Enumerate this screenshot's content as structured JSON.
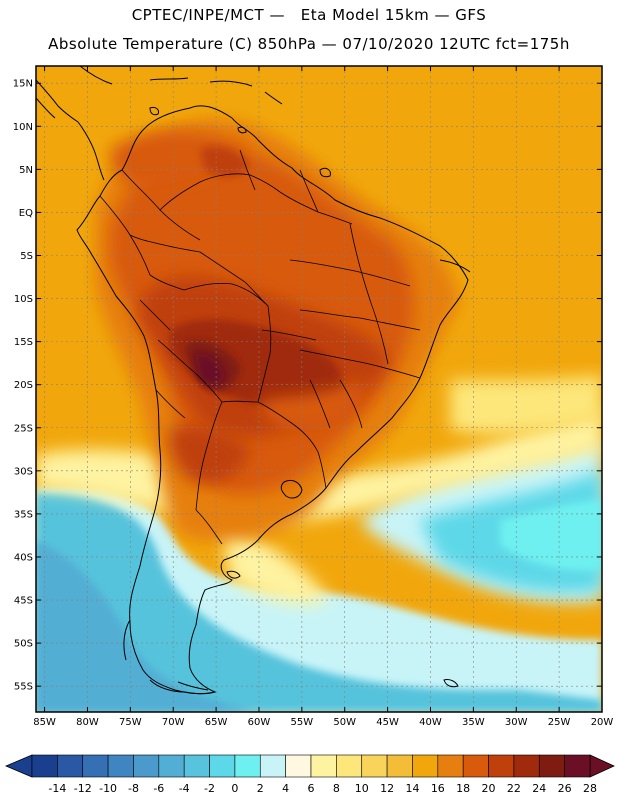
{
  "header": {
    "line1": "CPTEC/INPE/MCT —   Eta Model 15km — GFS",
    "line2": "Absolute Temperature (C) 850hPa — 07/10/2020 12UTC fct=175h"
  },
  "map": {
    "lat_labels": [
      "15N",
      "10N",
      "5N",
      "EQ",
      "5S",
      "10S",
      "15S",
      "20S",
      "25S",
      "30S",
      "35S",
      "40S",
      "45S",
      "50S",
      "55S"
    ],
    "lon_labels": [
      "85W",
      "80W",
      "75W",
      "70W",
      "65W",
      "60W",
      "55W",
      "50W",
      "45W",
      "40W",
      "35W",
      "30W",
      "25W",
      "20W"
    ],
    "lat_range": [
      17,
      -58
    ],
    "lon_range": [
      -86,
      -20
    ]
  },
  "colorbar": {
    "labels": [
      "-14",
      "-12",
      "-10",
      "-8",
      "-6",
      "-4",
      "-2",
      "0",
      "2",
      "4",
      "6",
      "8",
      "10",
      "12",
      "14",
      "16",
      "18",
      "20",
      "22",
      "24",
      "26",
      "28"
    ],
    "colors": [
      "#1b3f8f",
      "#2a58a4",
      "#356fb4",
      "#3f85c2",
      "#4a9acc",
      "#52aed4",
      "#57c3dc",
      "#5dd8e8",
      "#6ef0f0",
      "#c8f4f8",
      "#fff8e0",
      "#fef3a0",
      "#fde77a",
      "#f8d45a",
      "#f3bd38",
      "#f1a70c",
      "#e67f10",
      "#d85a0c",
      "#c0400c",
      "#a02a0c",
      "#7e1c12",
      "#6a0f26"
    ]
  }
}
